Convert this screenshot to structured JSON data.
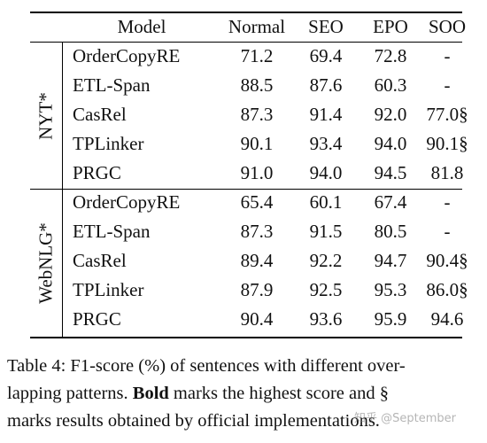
{
  "table": {
    "headers": [
      "Model",
      "Normal",
      "SEO",
      "EPO",
      "SOO"
    ],
    "groups": [
      {
        "label": "NYT*",
        "rows": [
          {
            "model": "OrderCopyRE",
            "normal": "71.2",
            "seo": "69.4",
            "epo": "72.8",
            "soo": "-"
          },
          {
            "model": "ETL-Span",
            "normal": "88.5",
            "seo": "87.6",
            "epo": "60.3",
            "soo": "-"
          },
          {
            "model": "CasRel",
            "normal": "87.3",
            "seo": "91.4",
            "epo": "92.0",
            "soo": "77.0§"
          },
          {
            "model": "TPLinker",
            "normal": "90.1",
            "seo": "93.4",
            "epo": "94.0",
            "soo": "90.1§"
          },
          {
            "model": "PRGC",
            "normal": "91.0",
            "seo": "94.0",
            "epo": "94.5",
            "soo": "81.8"
          }
        ]
      },
      {
        "label": "WebNLG*",
        "rows": [
          {
            "model": "OrderCopyRE",
            "normal": "65.4",
            "seo": "60.1",
            "epo": "67.4",
            "soo": "-"
          },
          {
            "model": "ETL-Span",
            "normal": "87.3",
            "seo": "91.5",
            "epo": "80.5",
            "soo": "-"
          },
          {
            "model": "CasRel",
            "normal": "89.4",
            "seo": "92.2",
            "epo": "94.7",
            "soo": "90.4§"
          },
          {
            "model": "TPLinker",
            "normal": "87.9",
            "seo": "92.5",
            "epo": "95.3",
            "soo": "86.0§"
          },
          {
            "model": "PRGC",
            "normal": "90.4",
            "seo": "93.6",
            "epo": "95.9",
            "soo": "94.6"
          }
        ]
      }
    ]
  },
  "caption": {
    "line1": "Table 4: F1-score (%) of sentences with different over-",
    "line2_pre": "lapping patterns. ",
    "line2_bold": "Bold",
    "line2_post": " marks the highest score and §",
    "line3": "marks results obtained by official implementations."
  },
  "watermark": "知乎 @September"
}
